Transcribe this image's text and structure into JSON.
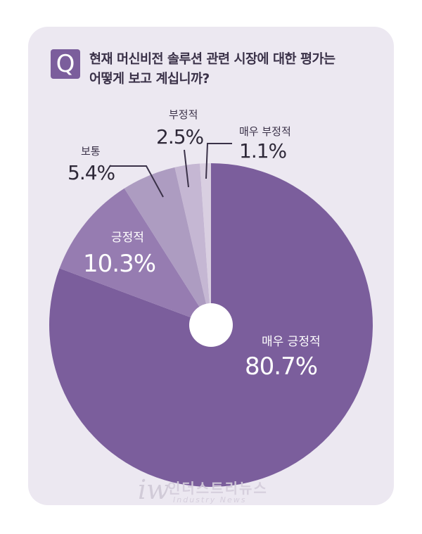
{
  "question": {
    "badge": "Q",
    "line1": "현재 머신비전 솔루션 관련 시장에 대한 평가는",
    "line2": "어떻게 보고 계십니까?"
  },
  "chart_data": {
    "type": "pie",
    "categories": [
      "매우 긍정적",
      "긍정적",
      "보통",
      "부정적",
      "매우 부정적"
    ],
    "values": [
      80.7,
      10.3,
      5.4,
      2.5,
      1.1
    ],
    "value_labels": [
      "80.7%",
      "10.3%",
      "5.4%",
      "2.5%",
      "1.1%"
    ],
    "colors": [
      "#7b5e9c",
      "#967cb1",
      "#ad9cc1",
      "#c5b7d3",
      "#d9cfe1"
    ],
    "donut_hole": true,
    "hole_color": "#ffffff"
  },
  "watermark": {
    "icon": "iw",
    "main": "인더스트리뉴스",
    "sub": "Industry News"
  }
}
